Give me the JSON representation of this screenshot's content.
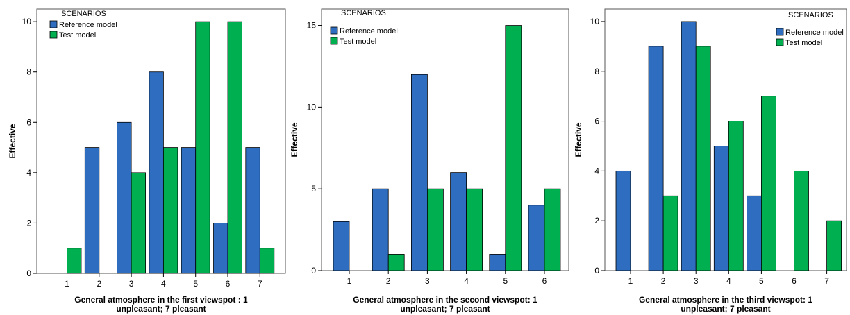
{
  "colors": {
    "reference": "#2E6DBF",
    "test": "#00B050",
    "frame": "#555555"
  },
  "chart_data": [
    {
      "type": "bar",
      "legend_title": "SCENARIOS",
      "legend_position": "top-left",
      "categories": [
        "1",
        "2",
        "3",
        "4",
        "5",
        "6",
        "7"
      ],
      "series": [
        {
          "name": "Reference model",
          "values": [
            0,
            5,
            6,
            8,
            5,
            2,
            5
          ]
        },
        {
          "name": "Test model",
          "values": [
            1,
            0,
            4,
            5,
            10,
            10,
            1
          ]
        }
      ],
      "ylabel": "Effective",
      "xlabel_line1": "General atmosphere in the first viewspot : 1",
      "xlabel_line2": "unpleasant; 7 pleasant",
      "ylim": [
        0,
        10.5
      ],
      "yticks": [
        0,
        2,
        4,
        6,
        8,
        10
      ],
      "grid": false
    },
    {
      "type": "bar",
      "legend_title": "SCENARIOS",
      "legend_position": "top-left",
      "categories": [
        "1",
        "2",
        "3",
        "4",
        "5",
        "6"
      ],
      "series": [
        {
          "name": "Reference model",
          "values": [
            3,
            5,
            12,
            6,
            1,
            4
          ]
        },
        {
          "name": "Test model",
          "values": [
            0,
            1,
            5,
            5,
            15,
            5
          ]
        }
      ],
      "ylabel": "Effective",
      "xlabel_line1": "General atmosphere in the second viewspot: 1",
      "xlabel_line2": "unpleasant; 7 pleasant",
      "ylim": [
        0,
        16
      ],
      "yticks": [
        0,
        5,
        10,
        15
      ],
      "grid": false
    },
    {
      "type": "bar",
      "legend_title": "SCENARIOS",
      "legend_position": "top-right",
      "categories": [
        "1",
        "2",
        "3",
        "4",
        "5",
        "6",
        "7"
      ],
      "series": [
        {
          "name": "Reference model",
          "values": [
            4,
            9,
            10,
            5,
            3,
            0,
            0
          ]
        },
        {
          "name": "Test model",
          "values": [
            0,
            3,
            9,
            6,
            7,
            4,
            2
          ]
        }
      ],
      "ylabel": "Effective",
      "xlabel_line1": "General atmosphere in the third viewspot: 1",
      "xlabel_line2": "unpleasant; 7 pleasant",
      "ylim": [
        0,
        10.5
      ],
      "yticks": [
        0,
        2,
        4,
        6,
        8,
        10
      ],
      "grid": false
    }
  ]
}
